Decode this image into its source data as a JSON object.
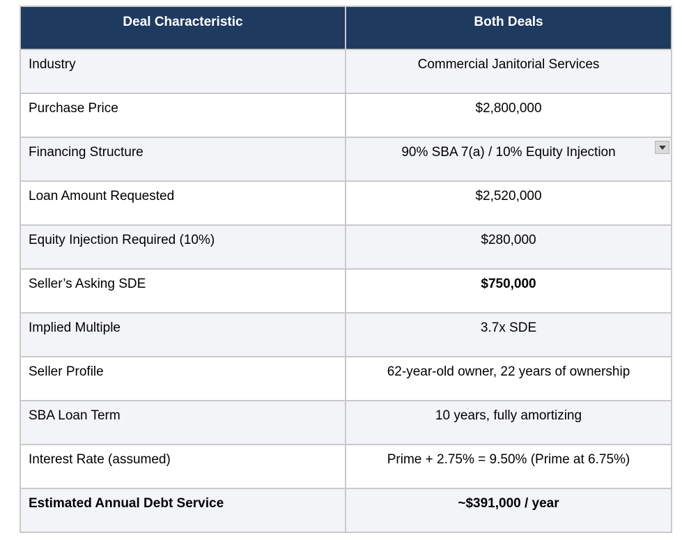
{
  "table": {
    "columns": [
      {
        "label": "Deal Characteristic"
      },
      {
        "label": "Both Deals"
      }
    ],
    "rows": [
      {
        "label": "Industry",
        "value": "Commercial Janitorial Services",
        "label_bold": false,
        "value_bold": false,
        "dropdown": false
      },
      {
        "label": "Purchase Price",
        "value": "$2,800,000",
        "label_bold": false,
        "value_bold": false,
        "dropdown": false
      },
      {
        "label": "Financing Structure",
        "value": "90% SBA 7(a) / 10% Equity Injection",
        "label_bold": false,
        "value_bold": false,
        "dropdown": true
      },
      {
        "label": "Loan Amount Requested",
        "value": "$2,520,000",
        "label_bold": false,
        "value_bold": false,
        "dropdown": false
      },
      {
        "label": "Equity Injection Required (10%)",
        "value": "$280,000",
        "label_bold": false,
        "value_bold": false,
        "dropdown": false
      },
      {
        "label": "Seller’s Asking SDE",
        "value": "$750,000",
        "label_bold": false,
        "value_bold": true,
        "dropdown": false
      },
      {
        "label": "Implied Multiple",
        "value": "3.7x SDE",
        "label_bold": false,
        "value_bold": false,
        "dropdown": false
      },
      {
        "label": "Seller Profile",
        "value": "62-year-old owner, 22 years of ownership",
        "label_bold": false,
        "value_bold": false,
        "dropdown": false
      },
      {
        "label": "SBA Loan Term",
        "value": "10 years, fully amortizing",
        "label_bold": false,
        "value_bold": false,
        "dropdown": false
      },
      {
        "label": "Interest Rate (assumed)",
        "value": "Prime + 2.75% = 9.50% (Prime at 6.75%)",
        "label_bold": false,
        "value_bold": false,
        "dropdown": false
      },
      {
        "label": "Estimated Annual Debt Service",
        "value": "~$391,000 / year",
        "label_bold": true,
        "value_bold": true,
        "dropdown": false
      }
    ],
    "colors": {
      "header_bg": "#1e3a5f",
      "header_text": "#ffffff",
      "row_shaded_bg": "#f3f4f7",
      "row_plain_bg": "#ffffff",
      "border": "#c9c9c9",
      "body_text": "#000000",
      "dropdown_button_bg": "#d9d9d9",
      "dropdown_arrow": "#3a3a3a"
    },
    "icons": {
      "dropdown": "chevron-down-icon"
    }
  }
}
